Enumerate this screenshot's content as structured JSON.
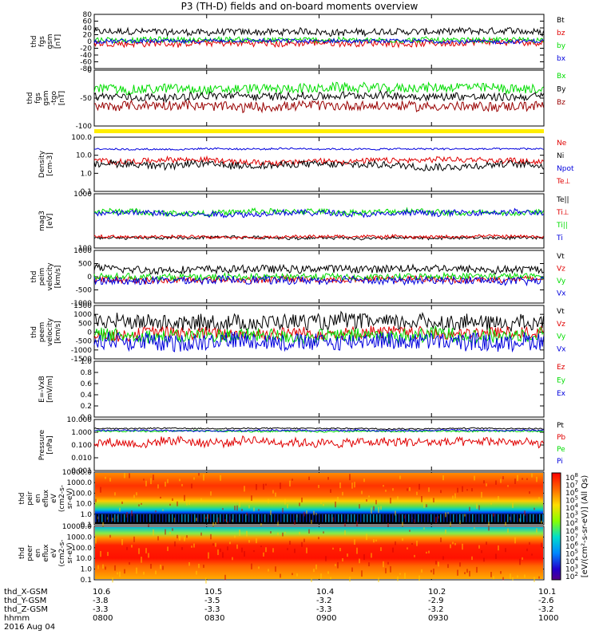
{
  "title": "P3 (TH-D) fields and on-board moments overview",
  "colors": {
    "black": "#000000",
    "red": "#e00000",
    "green": "#00dd00",
    "blue": "#0000dd",
    "darkred": "#990000",
    "yellow": "#ffee00"
  },
  "chart_data": [
    {
      "type": "line",
      "id": "fgs",
      "ylabel": [
        "thd",
        "fgs",
        "gsm",
        "[nT]"
      ],
      "yticks": [
        "80",
        "60",
        "40",
        "20",
        "0",
        "-20",
        "-40",
        "-60",
        "-80"
      ],
      "ylim": [
        -80,
        80
      ],
      "series": [
        {
          "name": "Bt",
          "color": "black",
          "level": 28,
          "noise": 10
        },
        {
          "name": "bz",
          "color": "red",
          "level": -5,
          "noise": 10
        },
        {
          "name": "by",
          "color": "green",
          "level": 5,
          "noise": 8
        },
        {
          "name": "bx",
          "color": "blue",
          "level": 0,
          "noise": 6
        }
      ]
    },
    {
      "type": "line",
      "id": "fgs2",
      "ylabel": [
        "thd",
        "fgs",
        "gsm",
        "-tgo",
        "[nT]"
      ],
      "yticks": [
        "0",
        "-50",
        "-100"
      ],
      "ylim": [
        -120,
        20
      ],
      "series": [
        {
          "name": "Bx",
          "color": "green",
          "level": -25,
          "noise": 12
        },
        {
          "name": "By",
          "color": "black",
          "level": -45,
          "noise": 10
        },
        {
          "name": "Bz",
          "color": "darkred",
          "level": -70,
          "noise": 12
        }
      ]
    },
    {
      "type": "line",
      "id": "density",
      "log": true,
      "ylabel": [
        "Density",
        "[cm-3]"
      ],
      "yticks": [
        "100.0",
        "10.0",
        "1.0",
        "0.1"
      ],
      "ylim": [
        0.1,
        100
      ],
      "series": [
        {
          "name": "Ne",
          "color": "red",
          "level": 5,
          "noise": 0.15
        },
        {
          "name": "Ni",
          "color": "black",
          "level": 3,
          "noise": 0.2
        },
        {
          "name": "Npot",
          "color": "blue",
          "level": 22,
          "noise": 0.05
        },
        {
          "name": "Te⊥",
          "color": "red",
          "level": null,
          "noise": 0
        }
      ]
    },
    {
      "type": "line",
      "id": "temp",
      "log": true,
      "ylabel": [
        "mag3",
        "[eV]"
      ],
      "yticks": [
        "1000",
        "100"
      ],
      "ylim": [
        40,
        3000
      ],
      "series": [
        {
          "name": "Te||",
          "color": "black",
          "level": 90,
          "noise": 0.05
        },
        {
          "name": "Ti⊥",
          "color": "red",
          "level": 100,
          "noise": 0.05
        },
        {
          "name": "Ti||",
          "color": "green",
          "level": 700,
          "noise": 0.1
        },
        {
          "name": "Ti",
          "color": "blue",
          "level": 650,
          "noise": 0.1
        }
      ]
    },
    {
      "type": "line",
      "id": "peim",
      "ylabel": [
        "thd",
        "peim",
        "velocity",
        "[km/s]"
      ],
      "yticks": [
        "1000",
        "500",
        "0",
        "-500",
        "-1000"
      ],
      "ylim": [
        -1000,
        1000
      ],
      "series": [
        {
          "name": "Vt",
          "color": "black",
          "level": 300,
          "noise": 150
        },
        {
          "name": "Vz",
          "color": "red",
          "level": -100,
          "noise": 120
        },
        {
          "name": "Vy",
          "color": "green",
          "level": 0,
          "noise": 120
        },
        {
          "name": "Vx",
          "color": "blue",
          "level": -150,
          "noise": 150
        }
      ]
    },
    {
      "type": "line",
      "id": "peem",
      "ylabel": [
        "thd",
        "peem",
        "velocity",
        "[km/s]"
      ],
      "yticks": [
        "1500",
        "1000",
        "500",
        "0",
        "-500",
        "-1000",
        "-1500"
      ],
      "ylim": [
        -1500,
        1500
      ],
      "series": [
        {
          "name": "Vt",
          "color": "black",
          "level": 600,
          "noise": 450
        },
        {
          "name": "Vz",
          "color": "red",
          "level": -50,
          "noise": 350
        },
        {
          "name": "Vy",
          "color": "green",
          "level": -200,
          "noise": 400
        },
        {
          "name": "Vx",
          "color": "blue",
          "level": -500,
          "noise": 500
        }
      ]
    },
    {
      "type": "line",
      "id": "efield",
      "ylabel": [
        "E=-VxB",
        "[mV/m]"
      ],
      "yticks": [
        "1.0",
        "0.8",
        "0.6",
        "0.4",
        "0.2",
        "0.0"
      ],
      "ylim": [
        0,
        1
      ],
      "series": [
        {
          "name": "Ez",
          "color": "red",
          "level": null,
          "noise": 0
        },
        {
          "name": "Ey",
          "color": "green",
          "level": null,
          "noise": 0
        },
        {
          "name": "Ex",
          "color": "blue",
          "level": null,
          "noise": 0
        }
      ]
    },
    {
      "type": "line",
      "id": "pressure",
      "log": true,
      "ylabel": [
        "Pressure",
        "[nPa]"
      ],
      "yticks": [
        "10.000",
        "1.000",
        "0.100",
        "0.010",
        "0.001"
      ],
      "ylim": [
        0.001,
        10
      ],
      "series": [
        {
          "name": "Pt",
          "color": "black",
          "level": 2,
          "noise": 0.05
        },
        {
          "name": "Pb",
          "color": "red",
          "level": 0.15,
          "noise": 0.35
        },
        {
          "name": "Pe",
          "color": "green",
          "level": 1.2,
          "noise": 0.06
        },
        {
          "name": "Pi",
          "color": "blue",
          "level": 1.4,
          "noise": 0.06
        }
      ]
    },
    {
      "type": "heatmap",
      "id": "peir",
      "ylabel": [
        "thd",
        "peir",
        "en",
        "eflux",
        "eV",
        "(cm2-s-",
        "sr-eV)"
      ],
      "yticks": [
        "10000.0",
        "1000.0",
        "100.0",
        "10.0",
        "1.0",
        "0.1"
      ]
    },
    {
      "type": "heatmap",
      "id": "peer",
      "ylabel": [
        "thd",
        "peer",
        "en",
        "eflux",
        "eV",
        "(cm2-s-",
        "sr-eV)"
      ],
      "yticks": [
        "10000.0",
        "1000.0",
        "100.0",
        "10.0",
        "1.0",
        "0.1"
      ]
    }
  ],
  "colorbar": {
    "ticks": [
      "10^8",
      "10^7",
      "10^6",
      "10^5",
      "10^4",
      "10^3",
      "10^2",
      "10^8",
      "10^7",
      "10^6",
      "10^5",
      "10^4",
      "10^3",
      "10^2"
    ],
    "label": "[eV/(cm²-s-sr-eV)] (All Qs)"
  },
  "xaxis": {
    "rows": [
      {
        "label": "thd_X-GSM",
        "values": [
          "10.6",
          "10.5",
          "10.4",
          "10.2",
          "10.1"
        ]
      },
      {
        "label": "thd_Y-GSM",
        "values": [
          "-3.8",
          "-3.5",
          "-3.2",
          "-2.9",
          "-2.6"
        ]
      },
      {
        "label": "thd_Z-GSM",
        "values": [
          "-3.3",
          "-3.3",
          "-3.3",
          "-3.2",
          "-3.2"
        ]
      },
      {
        "label": "hhmm",
        "values": [
          "0800",
          "0830",
          "0900",
          "0930",
          "1000"
        ]
      }
    ],
    "date": "2016 Aug 04"
  }
}
